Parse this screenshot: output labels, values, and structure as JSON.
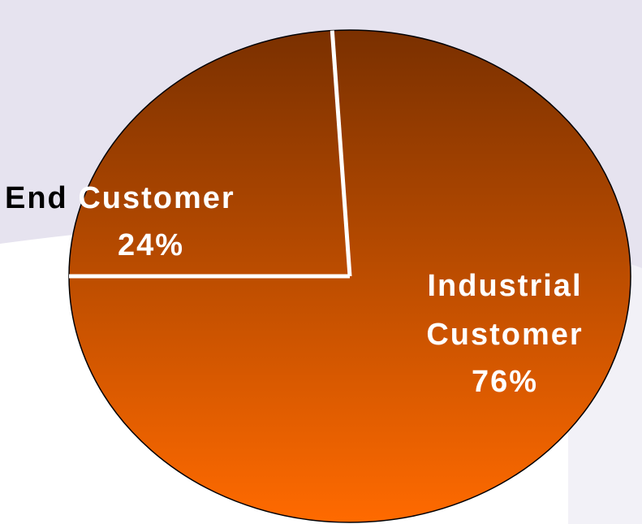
{
  "chart_data": {
    "type": "pie",
    "title": "",
    "slices": [
      {
        "label": "End Customer",
        "value": 24,
        "value_label": "24%"
      },
      {
        "label": "Industrial Customer",
        "value": 76,
        "value_label": "76%"
      }
    ],
    "colors": {
      "pie_top": "#7a3000",
      "pie_bottom": "#ff6a00",
      "separator": "#ffffff",
      "outline": "#000000",
      "label_inside": "#ffffff",
      "label_outside": "#000000",
      "background_band": "#e6e3ef",
      "background": "#ffffff"
    }
  }
}
